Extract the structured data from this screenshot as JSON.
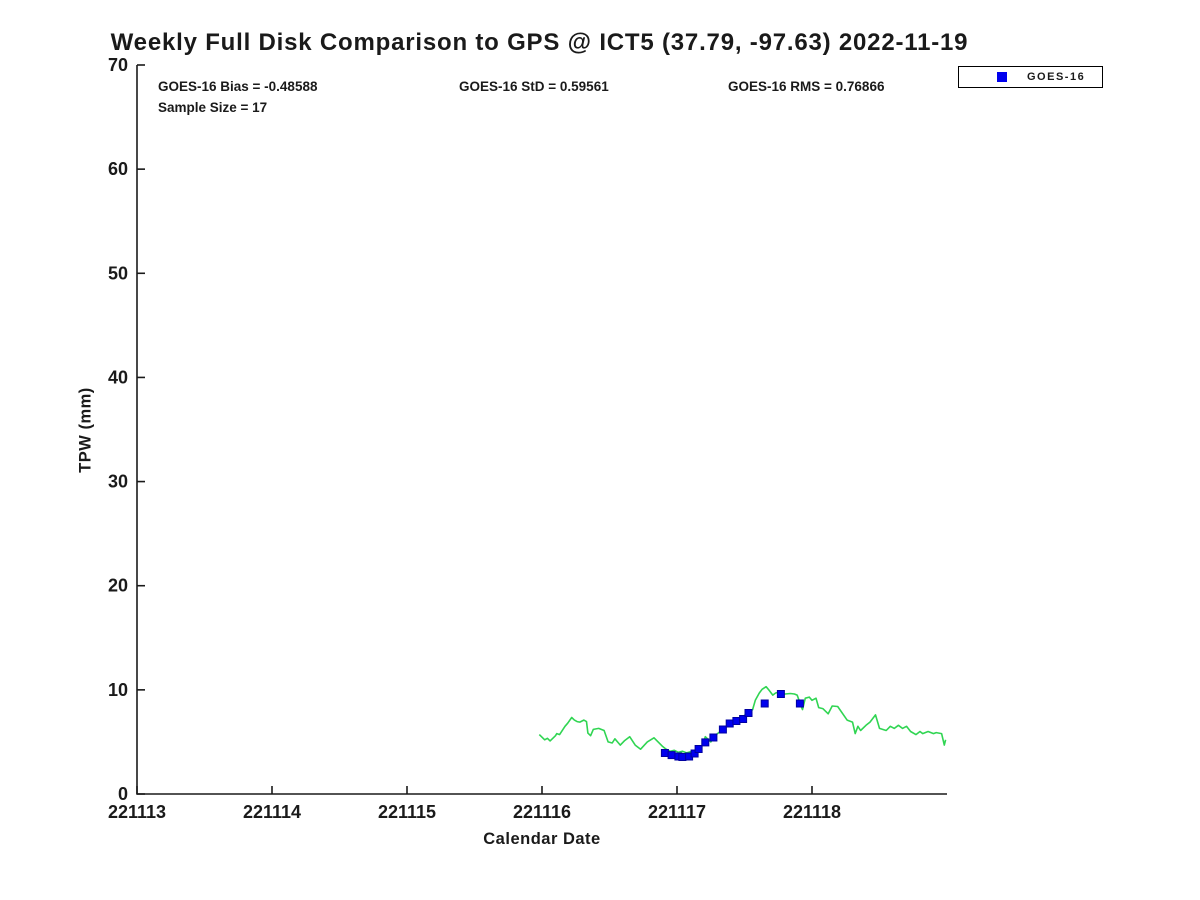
{
  "title": "Weekly Full Disk Comparison to GPS @ ICT5 (37.79, -97.63) 2022-11-19",
  "annotations": {
    "bias": "GOES-16 Bias = -0.48588",
    "std": "GOES-16 StD = 0.59561",
    "rms": "GOES-16 RMS = 0.76866",
    "sample_size": "Sample Size = 17"
  },
  "legend": {
    "position": "top-right",
    "items": [
      {
        "label": "GOES-16",
        "marker": "square",
        "color": "#0000ee"
      }
    ]
  },
  "colors": {
    "background": "#ffffff",
    "axis": "#1a1a1a",
    "gps_line": "#30d552",
    "goes16_marker_fill": "#0000ee",
    "goes16_marker_edge": "#0000a0"
  },
  "chart_data": {
    "type": "line",
    "title": "Weekly Full Disk Comparison to GPS @ ICT5 (37.79, -97.63) 2022-11-19",
    "xlabel": "Calendar Date",
    "ylabel": "TPW (mm)",
    "xlim": [
      221113,
      221119
    ],
    "ylim": [
      0,
      70
    ],
    "grid": false,
    "legend_position": "top-right",
    "x_tick_values": [
      221113,
      221114,
      221115,
      221116,
      221117,
      221118
    ],
    "x_tick_labels": [
      "221113",
      "221114",
      "221115",
      "221116",
      "221117",
      "221118"
    ],
    "y_tick_values": [
      0,
      10,
      20,
      30,
      40,
      50,
      60,
      70
    ],
    "series": [
      {
        "name": "GPS",
        "type": "line",
        "color": "#30d552",
        "points": [
          [
            221115.98,
            5.7
          ],
          [
            221116.02,
            5.2
          ],
          [
            221116.04,
            5.35
          ],
          [
            221116.06,
            5.1
          ],
          [
            221116.1,
            5.6
          ],
          [
            221116.11,
            5.8
          ],
          [
            221116.13,
            5.7
          ],
          [
            221116.17,
            6.5
          ],
          [
            221116.19,
            6.8
          ],
          [
            221116.22,
            7.35
          ],
          [
            221116.24,
            7.1
          ],
          [
            221116.26,
            6.95
          ],
          [
            221116.28,
            6.9
          ],
          [
            221116.31,
            7.1
          ],
          [
            221116.33,
            6.95
          ],
          [
            221116.34,
            5.85
          ],
          [
            221116.36,
            5.6
          ],
          [
            221116.38,
            6.2
          ],
          [
            221116.42,
            6.3
          ],
          [
            221116.46,
            6.1
          ],
          [
            221116.49,
            5.0
          ],
          [
            221116.52,
            4.9
          ],
          [
            221116.54,
            5.3
          ],
          [
            221116.58,
            4.7
          ],
          [
            221116.61,
            5.1
          ],
          [
            221116.65,
            5.5
          ],
          [
            221116.69,
            4.7
          ],
          [
            221116.73,
            4.3
          ],
          [
            221116.78,
            5.0
          ],
          [
            221116.83,
            5.4
          ],
          [
            221116.86,
            5.0
          ],
          [
            221116.89,
            4.6
          ],
          [
            221116.92,
            4.3
          ],
          [
            221116.95,
            4.1
          ],
          [
            221116.98,
            4.2
          ],
          [
            221117.01,
            4.0
          ],
          [
            221117.04,
            4.1
          ],
          [
            221117.07,
            3.95
          ],
          [
            221117.1,
            4.05
          ],
          [
            221117.13,
            4.2
          ],
          [
            221117.16,
            4.45
          ],
          [
            221117.19,
            4.7
          ],
          [
            221117.21,
            5.5
          ],
          [
            221117.25,
            5.0
          ],
          [
            221117.29,
            5.7
          ],
          [
            221117.33,
            6.1
          ],
          [
            221117.38,
            6.6
          ],
          [
            221117.42,
            7.1
          ],
          [
            221117.46,
            6.9
          ],
          [
            221117.48,
            7.4
          ],
          [
            221117.52,
            7.7
          ],
          [
            221117.56,
            8.1
          ],
          [
            221117.58,
            9.0
          ],
          [
            221117.61,
            9.7
          ],
          [
            221117.63,
            10.05
          ],
          [
            221117.66,
            10.3
          ],
          [
            221117.68,
            10.0
          ],
          [
            221117.71,
            9.5
          ],
          [
            221117.73,
            9.7
          ],
          [
            221117.76,
            9.8
          ],
          [
            221117.78,
            9.5
          ],
          [
            221117.8,
            9.6
          ],
          [
            221117.84,
            9.65
          ],
          [
            221117.87,
            9.6
          ],
          [
            221117.89,
            9.5
          ],
          [
            221117.92,
            8.4
          ],
          [
            221117.93,
            8.1
          ],
          [
            221117.95,
            9.2
          ],
          [
            221117.98,
            9.3
          ],
          [
            221118.0,
            9.0
          ],
          [
            221118.03,
            9.2
          ],
          [
            221118.05,
            8.3
          ],
          [
            221118.08,
            8.2
          ],
          [
            221118.12,
            7.7
          ],
          [
            221118.15,
            8.45
          ],
          [
            221118.19,
            8.4
          ],
          [
            221118.26,
            7.1
          ],
          [
            221118.3,
            6.9
          ],
          [
            221118.32,
            5.8
          ],
          [
            221118.34,
            6.5
          ],
          [
            221118.36,
            6.1
          ],
          [
            221118.4,
            6.6
          ],
          [
            221118.43,
            6.9
          ],
          [
            221118.47,
            7.6
          ],
          [
            221118.5,
            6.3
          ],
          [
            221118.55,
            6.1
          ],
          [
            221118.58,
            6.5
          ],
          [
            221118.61,
            6.3
          ],
          [
            221118.64,
            6.6
          ],
          [
            221118.67,
            6.3
          ],
          [
            221118.7,
            6.5
          ],
          [
            221118.73,
            6.0
          ],
          [
            221118.77,
            5.7
          ],
          [
            221118.8,
            6.0
          ],
          [
            221118.82,
            5.8
          ],
          [
            221118.86,
            6.0
          ],
          [
            221118.9,
            5.8
          ],
          [
            221118.92,
            5.9
          ],
          [
            221118.96,
            5.8
          ],
          [
            221118.98,
            4.7
          ],
          [
            221118.99,
            5.2
          ]
        ]
      },
      {
        "name": "GOES-16",
        "type": "scatter",
        "marker": "square",
        "color": "#0000ee",
        "points": [
          [
            221116.91,
            3.94
          ],
          [
            221116.96,
            3.74
          ],
          [
            221117.01,
            3.6
          ],
          [
            221117.04,
            3.55
          ],
          [
            221117.09,
            3.6
          ],
          [
            221117.13,
            3.89
          ],
          [
            221117.16,
            4.32
          ],
          [
            221117.21,
            4.95
          ],
          [
            221117.27,
            5.43
          ],
          [
            221117.34,
            6.19
          ],
          [
            221117.39,
            6.77
          ],
          [
            221117.44,
            7.01
          ],
          [
            221117.49,
            7.2
          ],
          [
            221117.53,
            7.78
          ],
          [
            221117.65,
            8.69
          ],
          [
            221117.77,
            9.6
          ],
          [
            221117.91,
            8.69
          ]
        ]
      }
    ]
  }
}
